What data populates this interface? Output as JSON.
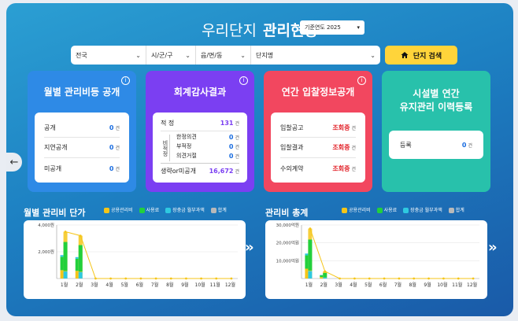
{
  "header": {
    "title_thin": "우리단지",
    "title_bold": "관리현황",
    "year_label": "기준연도 2025"
  },
  "filters": {
    "region": "전국",
    "city": "시/군/구",
    "town": "읍/면/동",
    "complex": "단지명",
    "search_label": "단지 검색"
  },
  "cards": [
    {
      "title": "월별 관리비등 공개",
      "rows": [
        {
          "label": "공개",
          "value": "0",
          "unit": "건"
        },
        {
          "label": "지연공개",
          "value": "0",
          "unit": "건"
        },
        {
          "label": "미공개",
          "value": "0",
          "unit": "건"
        }
      ]
    },
    {
      "title": "회계감사결과",
      "proper": {
        "label": "적 정",
        "value": "131",
        "unit": "건"
      },
      "nonproper_label": "비적정",
      "nonproper_items": [
        {
          "label": "한정의견",
          "value": "0",
          "unit": "건"
        },
        {
          "label": "부적정",
          "value": "0",
          "unit": "건"
        },
        {
          "label": "의견거절",
          "value": "0",
          "unit": "건"
        }
      ],
      "omitted": {
        "label": "생략or미공개",
        "value": "16,672",
        "unit": "건"
      }
    },
    {
      "title": "연간 입찰정보공개",
      "rows": [
        {
          "label": "입찰공고",
          "value": "조회중",
          "unit": "건"
        },
        {
          "label": "입찰결과",
          "value": "조회중",
          "unit": "건"
        },
        {
          "label": "수의계약",
          "value": "조회중",
          "unit": "건"
        }
      ]
    },
    {
      "title_line1": "시설별 연간",
      "title_line2": "유지관리 이력등록",
      "row": {
        "label": "등록",
        "value": "0",
        "unit": "건"
      }
    }
  ],
  "legend": [
    {
      "label": "공용관리비",
      "color": "#f5c518"
    },
    {
      "label": "사용료",
      "color": "#22d03c"
    },
    {
      "label": "장충금 월부과액",
      "color": "#2ec9e0"
    },
    {
      "label": "합계",
      "color": "#b9b9b9"
    }
  ],
  "chart_data": [
    {
      "type": "bar",
      "title": "월별 관리비 단가",
      "categories": [
        "1월",
        "2월",
        "3월",
        "4월",
        "5월",
        "6월",
        "7월",
        "8월",
        "9월",
        "10월",
        "11월",
        "12월"
      ],
      "yticks": [
        "4,000원",
        "2,000원"
      ],
      "ylim": [
        0,
        4000
      ],
      "series": [
        {
          "name": "공용관리비",
          "values": [
            1250,
            1150,
            0,
            0,
            0,
            0,
            0,
            0,
            0,
            0,
            0,
            0
          ]
        },
        {
          "name": "사용료",
          "values": [
            2000,
            1800,
            0,
            0,
            0,
            0,
            0,
            0,
            0,
            0,
            0,
            0
          ]
        },
        {
          "name": "장충금 월부과액",
          "values": [
            250,
            250,
            0,
            0,
            0,
            0,
            0,
            0,
            0,
            0,
            0,
            0
          ]
        },
        {
          "name": "합계",
          "values": [
            3500,
            3200,
            0,
            0,
            0,
            0,
            0,
            0,
            0,
            0,
            0,
            0
          ]
        }
      ]
    },
    {
      "type": "bar",
      "title": "관리비 총계",
      "categories": [
        "1월",
        "2월",
        "3월",
        "4월",
        "5월",
        "6월",
        "7월",
        "8월",
        "9월",
        "10월",
        "11월",
        "12월"
      ],
      "yticks": [
        "30,000억원",
        "20,000억원",
        "10,000억원"
      ],
      "ylim": [
        0,
        30000
      ],
      "series": [
        {
          "name": "공용관리비",
          "values": [
            11000,
            1600,
            0,
            0,
            0,
            0,
            0,
            0,
            0,
            0,
            0,
            0
          ]
        },
        {
          "name": "사용료",
          "values": [
            15000,
            2000,
            0,
            0,
            0,
            0,
            0,
            0,
            0,
            0,
            0,
            0
          ]
        },
        {
          "name": "장충금 월부과액",
          "values": [
            2000,
            400,
            0,
            0,
            0,
            0,
            0,
            0,
            0,
            0,
            0,
            0
          ]
        },
        {
          "name": "합계",
          "values": [
            28000,
            4000,
            0,
            0,
            0,
            0,
            0,
            0,
            0,
            0,
            0,
            0
          ]
        }
      ]
    }
  ]
}
